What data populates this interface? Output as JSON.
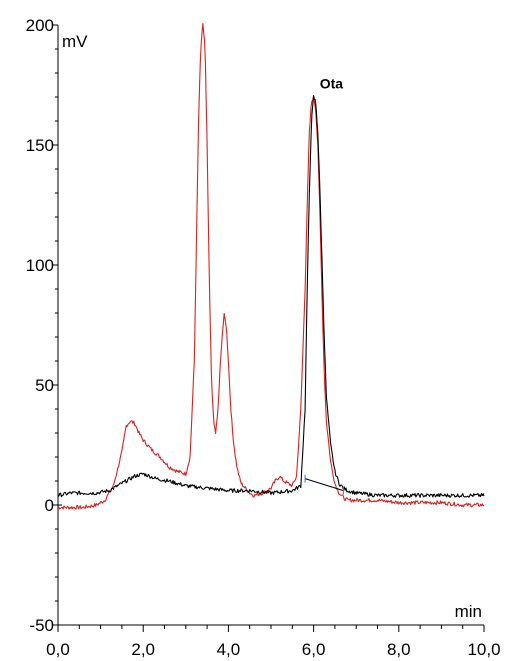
{
  "chart_data": {
    "type": "line",
    "title": "",
    "xlabel": "min",
    "ylabel": "mV",
    "xlim": [
      0,
      10
    ],
    "ylim": [
      -50,
      200
    ],
    "x_ticks": [
      0,
      2,
      4,
      6,
      8,
      10
    ],
    "x_tick_labels": [
      "0,0",
      "2,0",
      "4,0",
      "6,0",
      "8,0",
      "10,0"
    ],
    "y_ticks": [
      -50,
      0,
      50,
      100,
      150,
      200
    ],
    "y_tick_labels": [
      "-50",
      "0",
      "50",
      "100",
      "150",
      "200"
    ],
    "grid": false,
    "annotations": [
      {
        "text": "Ota",
        "x": 6.05,
        "y": 171
      }
    ],
    "series": [
      {
        "color": "#dd1f1f",
        "x": [
          0,
          0.3,
          0.6,
          0.9,
          1.1,
          1.3,
          1.5,
          1.6,
          1.7,
          1.8,
          1.9,
          2.0,
          2.2,
          2.4,
          2.6,
          2.8,
          3.0,
          3.1,
          3.2,
          3.25,
          3.3,
          3.35,
          3.4,
          3.45,
          3.5,
          3.55,
          3.6,
          3.65,
          3.7,
          3.75,
          3.8,
          3.85,
          3.9,
          3.95,
          4.0,
          4.05,
          4.1,
          4.15,
          4.2,
          4.25,
          4.3,
          4.4,
          4.5,
          4.6,
          4.8,
          5.0,
          5.1,
          5.2,
          5.3,
          5.4,
          5.5,
          5.6,
          5.7,
          5.8,
          5.85,
          5.9,
          5.95,
          6.0,
          6.05,
          6.1,
          6.15,
          6.2,
          6.25,
          6.3,
          6.4,
          6.5,
          6.6,
          6.7,
          6.8,
          7.0,
          7.5,
          8.0,
          8.5,
          9.0,
          9.5,
          10.0
        ],
        "y": [
          -1,
          -1,
          -1,
          0,
          2,
          8,
          22,
          33,
          35,
          34,
          30,
          27,
          23,
          20,
          16,
          14,
          13,
          20,
          60,
          110,
          160,
          190,
          200,
          192,
          150,
          95,
          55,
          35,
          30,
          38,
          55,
          70,
          79,
          75,
          60,
          42,
          30,
          22,
          16,
          12,
          9,
          7,
          5,
          4,
          5,
          7,
          10,
          12,
          10,
          9,
          8,
          12,
          40,
          90,
          125,
          155,
          168,
          170,
          165,
          150,
          120,
          85,
          55,
          35,
          18,
          9,
          5,
          3,
          2,
          2,
          2,
          1,
          1,
          1,
          0,
          0
        ]
      },
      {
        "color": "#000000",
        "x": [
          0,
          0.3,
          0.6,
          0.9,
          1.2,
          1.5,
          1.8,
          2.0,
          2.3,
          2.6,
          3.0,
          3.5,
          4.0,
          4.5,
          5.0,
          5.5,
          5.7,
          5.8,
          5.85,
          5.9,
          5.95,
          6.0,
          6.05,
          6.1,
          6.15,
          6.2,
          6.25,
          6.3,
          6.4,
          6.5,
          6.6,
          6.7,
          6.8,
          7.0,
          7.5,
          8.0,
          8.5,
          9.0,
          9.5,
          10.0
        ],
        "y": [
          4,
          5,
          5,
          5,
          6,
          9,
          12,
          13,
          11,
          10,
          8,
          7,
          6,
          6,
          5,
          6,
          8,
          40,
          90,
          130,
          160,
          170,
          168,
          155,
          130,
          100,
          70,
          45,
          25,
          14,
          9,
          7,
          6,
          5,
          4,
          4,
          4,
          4,
          4,
          4
        ]
      }
    ],
    "baseline": {
      "color": "#000000",
      "x": [
        5.8,
        6.7
      ],
      "y": [
        11,
        6
      ]
    }
  }
}
